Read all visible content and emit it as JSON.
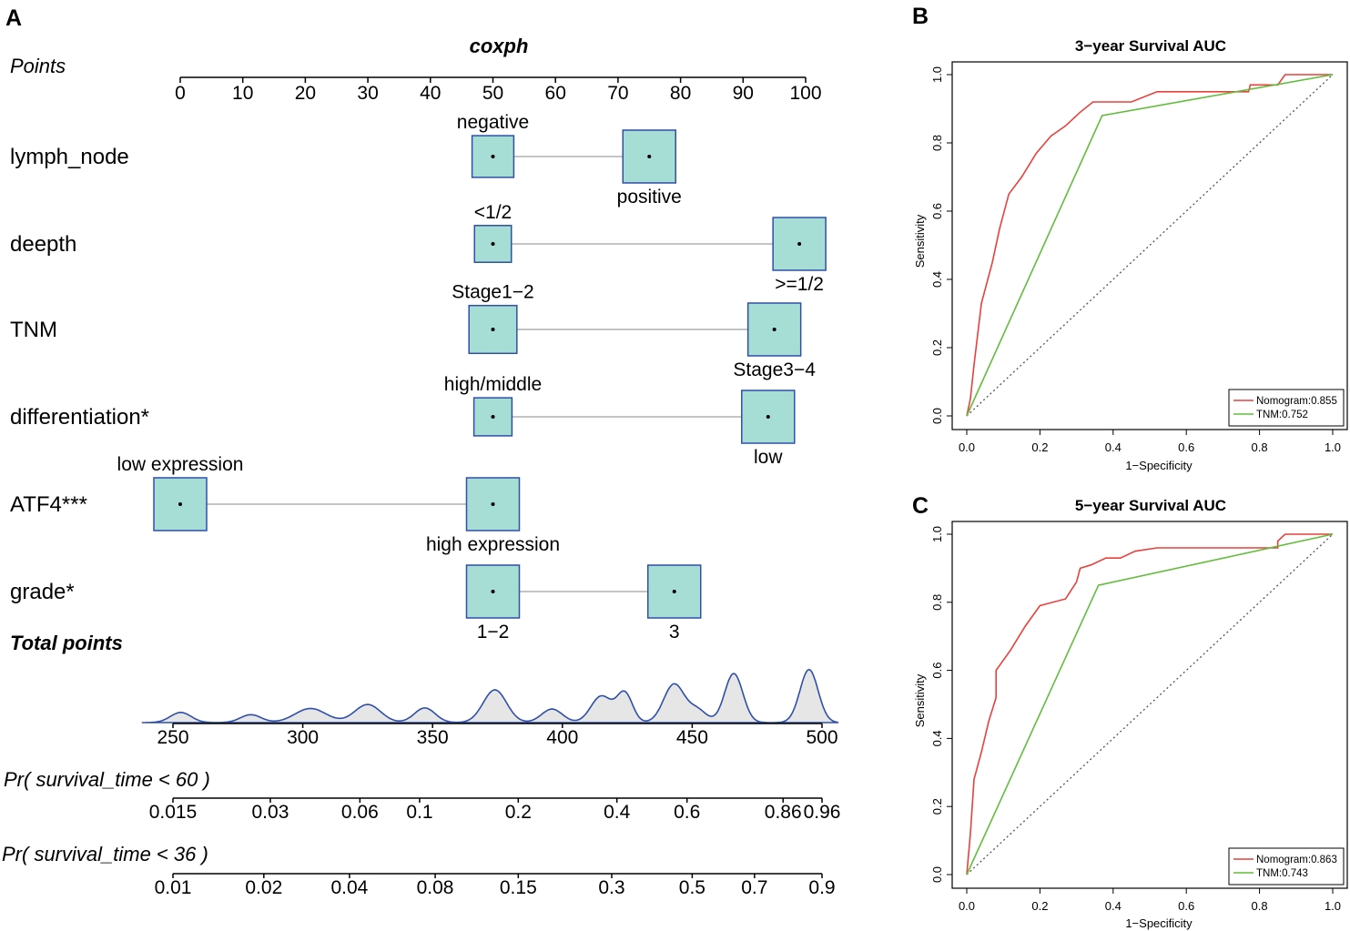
{
  "panel_letters": {
    "a": "A",
    "b": "B",
    "c": "C"
  },
  "colors": {
    "box_fill": "#a6ddd4",
    "box_stroke": "#2f4fa8",
    "density_fill": "#e6e6e6",
    "density_stroke": "#2f4fa8",
    "nomogram_line": "#e8413c",
    "tnm_line": "#63bd3c",
    "axis": "#000000",
    "connector": "#b0b0b0"
  },
  "chart_data": [
    {
      "type": "nomogram",
      "title": "coxph",
      "points_axis": {
        "label": "Points",
        "range": [
          0,
          100
        ],
        "ticks": [
          0,
          10,
          20,
          30,
          40,
          50,
          60,
          70,
          80,
          90,
          100
        ]
      },
      "variables": [
        {
          "name": "lymph_node",
          "levels": [
            {
              "label": "negative",
              "points": 50,
              "weight": 0.55,
              "label_pos": "above"
            },
            {
              "label": "positive",
              "points": 75,
              "weight": 1.0,
              "label_pos": "below"
            }
          ]
        },
        {
          "name": "deepth",
          "levels": [
            {
              "label": "<1/2",
              "points": 50,
              "weight": 0.35,
              "label_pos": "above"
            },
            {
              "label": ">=1/2",
              "points": 99,
              "weight": 1.0,
              "label_pos": "below"
            }
          ]
        },
        {
          "name": "TNM",
          "levels": [
            {
              "label": "Stage1−2",
              "points": 50,
              "weight": 0.8,
              "label_pos": "above"
            },
            {
              "label": "Stage3−4",
              "points": 95,
              "weight": 1.0,
              "label_pos": "below"
            }
          ]
        },
        {
          "name": "differentiation*",
          "levels": [
            {
              "label": "high/middle",
              "points": 50,
              "weight": 0.4,
              "label_pos": "above"
            },
            {
              "label": "low",
              "points": 94,
              "weight": 1.0,
              "label_pos": "below"
            }
          ]
        },
        {
          "name": "ATF4***",
          "levels": [
            {
              "label": "low expression",
              "points": 0,
              "weight": 1.0,
              "label_pos": "above"
            },
            {
              "label": "high expression",
              "points": 50,
              "weight": 1.0,
              "label_pos": "below"
            }
          ]
        },
        {
          "name": "grade*",
          "levels": [
            {
              "label": "1−2",
              "points": 50,
              "weight": 1.0,
              "label_pos": "below"
            },
            {
              "label": "3",
              "points": 79,
              "weight": 1.0,
              "label_pos": "below"
            }
          ]
        }
      ],
      "total_points": {
        "label": "Total points",
        "range": [
          250,
          500
        ],
        "ticks": [
          250,
          300,
          350,
          400,
          450,
          500
        ],
        "density": [
          {
            "center": 253,
            "height": 0.18,
            "width": 4
          },
          {
            "center": 280,
            "height": 0.14,
            "width": 4
          },
          {
            "center": 303,
            "height": 0.25,
            "width": 6
          },
          {
            "center": 325,
            "height": 0.32,
            "width": 5
          },
          {
            "center": 347,
            "height": 0.26,
            "width": 4
          },
          {
            "center": 374,
            "height": 0.58,
            "width": 4.5
          },
          {
            "center": 396,
            "height": 0.24,
            "width": 4
          },
          {
            "center": 415,
            "height": 0.47,
            "width": 4
          },
          {
            "center": 424,
            "height": 0.52,
            "width": 3
          },
          {
            "center": 443,
            "height": 0.68,
            "width": 4
          },
          {
            "center": 452,
            "height": 0.22,
            "width": 3.5
          },
          {
            "center": 466,
            "height": 0.87,
            "width": 3.5
          },
          {
            "center": 495,
            "height": 0.94,
            "width": 3.5
          }
        ]
      },
      "prob_axes": [
        {
          "label": "Pr( survival_time < 60 )",
          "ticks": [
            {
              "label": "0.015",
              "value": 250
            },
            {
              "label": "0.03",
              "value": 287.5
            },
            {
              "label": "0.06",
              "value": 322
            },
            {
              "label": "0.1",
              "value": 345
            },
            {
              "label": "0.2",
              "value": 383
            },
            {
              "label": "0.4",
              "value": 421
            },
            {
              "label": "0.6",
              "value": 448
            },
            {
              "label": "0.86",
              "value": 485
            },
            {
              "label": "0.96",
              "value": 500
            }
          ]
        },
        {
          "label": "Pr( survival_time < 36 )",
          "ticks": [
            {
              "label": "0.01",
              "value": 250
            },
            {
              "label": "0.02",
              "value": 285
            },
            {
              "label": "0.04",
              "value": 318
            },
            {
              "label": "0.08",
              "value": 351
            },
            {
              "label": "0.15",
              "value": 383
            },
            {
              "label": "0.3",
              "value": 419
            },
            {
              "label": "0.5",
              "value": 450
            },
            {
              "label": "0.7",
              "value": 474
            },
            {
              "label": "0.9",
              "value": 500
            }
          ]
        }
      ]
    },
    {
      "type": "line",
      "title": "3−year Survival AUC",
      "xlabel": "1−Specificity",
      "ylabel": "Sensitivity",
      "xlim": [
        0,
        1
      ],
      "ylim": [
        0,
        1
      ],
      "xticks": [
        "0.0",
        "0.2",
        "0.4",
        "0.6",
        "0.8",
        "1.0"
      ],
      "yticks": [
        "0.0",
        "0.2",
        "0.4",
        "0.6",
        "0.8",
        "1.0"
      ],
      "legend_position": "bottom-right",
      "series": [
        {
          "name": "Nomogram:0.855",
          "color_key": "nomogram_line",
          "points": [
            [
              0,
              0
            ],
            [
              0.01,
              0.05
            ],
            [
              0.02,
              0.15
            ],
            [
              0.04,
              0.33
            ],
            [
              0.07,
              0.45
            ],
            [
              0.09,
              0.55
            ],
            [
              0.115,
              0.65
            ],
            [
              0.15,
              0.7
            ],
            [
              0.19,
              0.77
            ],
            [
              0.23,
              0.82
            ],
            [
              0.27,
              0.85
            ],
            [
              0.31,
              0.89
            ],
            [
              0.345,
              0.92
            ],
            [
              0.4,
              0.92
            ],
            [
              0.45,
              0.92
            ],
            [
              0.52,
              0.95
            ],
            [
              0.62,
              0.95
            ],
            [
              0.77,
              0.95
            ],
            [
              0.775,
              0.97
            ],
            [
              0.85,
              0.97
            ],
            [
              0.87,
              1.0
            ],
            [
              1.0,
              1.0
            ]
          ]
        },
        {
          "name": "TNM:0.752",
          "color_key": "tnm_line",
          "points": [
            [
              0,
              0
            ],
            [
              0.37,
              0.88
            ],
            [
              1.0,
              1.0
            ]
          ]
        }
      ]
    },
    {
      "type": "line",
      "title": "5−year Survival AUC",
      "xlabel": "1−Specificity",
      "ylabel": "Sensitivity",
      "xlim": [
        0,
        1
      ],
      "ylim": [
        0,
        1
      ],
      "xticks": [
        "0.0",
        "0.2",
        "0.4",
        "0.6",
        "0.8",
        "1.0"
      ],
      "yticks": [
        "0.0",
        "0.2",
        "0.4",
        "0.6",
        "0.8",
        "1.0"
      ],
      "legend_position": "bottom-right",
      "series": [
        {
          "name": "Nomogram:0.863",
          "color_key": "nomogram_line",
          "points": [
            [
              0,
              0
            ],
            [
              0.01,
              0.12
            ],
            [
              0.02,
              0.28
            ],
            [
              0.04,
              0.36
            ],
            [
              0.06,
              0.45
            ],
            [
              0.08,
              0.52
            ],
            [
              0.08,
              0.6
            ],
            [
              0.12,
              0.66
            ],
            [
              0.16,
              0.73
            ],
            [
              0.2,
              0.79
            ],
            [
              0.27,
              0.81
            ],
            [
              0.3,
              0.86
            ],
            [
              0.31,
              0.9
            ],
            [
              0.34,
              0.91
            ],
            [
              0.38,
              0.93
            ],
            [
              0.42,
              0.93
            ],
            [
              0.46,
              0.95
            ],
            [
              0.52,
              0.96
            ],
            [
              0.85,
              0.96
            ],
            [
              0.85,
              0.98
            ],
            [
              0.87,
              1.0
            ],
            [
              1.0,
              1.0
            ]
          ]
        },
        {
          "name": "TNM:0.743",
          "color_key": "tnm_line",
          "points": [
            [
              0,
              0
            ],
            [
              0.36,
              0.85
            ],
            [
              1.0,
              1.0
            ]
          ]
        }
      ]
    }
  ]
}
